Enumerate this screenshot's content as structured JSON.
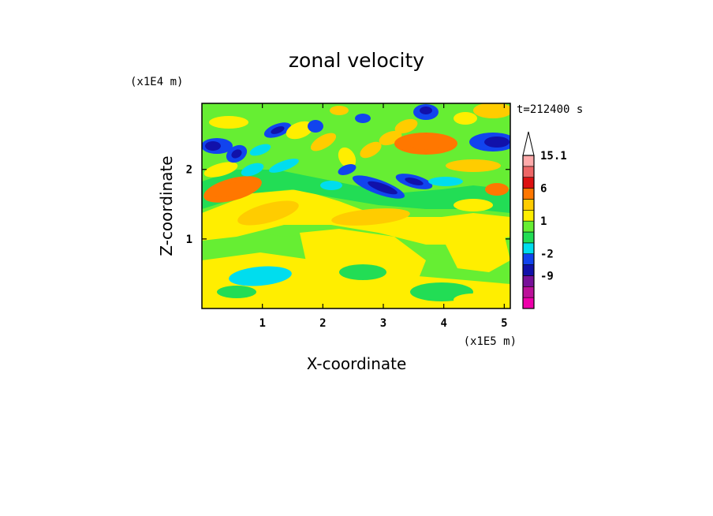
{
  "chart_data": {
    "type": "heatmap",
    "title": "zonal velocity",
    "xlabel": "X-coordinate",
    "ylabel": "Z-coordinate",
    "x_unit_label": "(x1E5 m)",
    "y_unit_label": "(x1E4 m)",
    "time_label": "t=212400 s",
    "xlim": [
      0,
      5.1
    ],
    "ylim": [
      0,
      2.95
    ],
    "x_ticks": [
      1,
      2,
      3,
      4,
      5
    ],
    "y_ticks": [
      1,
      2
    ],
    "colorbar": {
      "levels": [
        -15,
        -12,
        -9,
        -6,
        -2,
        -1,
        0,
        1,
        2,
        3,
        6,
        9,
        12,
        15.1
      ],
      "labels": [
        "15.1",
        "6",
        "1",
        "-2",
        "-9"
      ],
      "label_values": [
        15.1,
        6,
        1,
        -2,
        -9
      ],
      "colors": [
        "#ee00aa",
        "#bb1199",
        "#771199",
        "#1111aa",
        "#1144ee",
        "#00ddee",
        "#22dd55",
        "#66ee33",
        "#ffee00",
        "#ffcc00",
        "#ff7700",
        "#dd1111",
        "#ee6666",
        "#ffaaaa"
      ],
      "extend": "max"
    }
  }
}
